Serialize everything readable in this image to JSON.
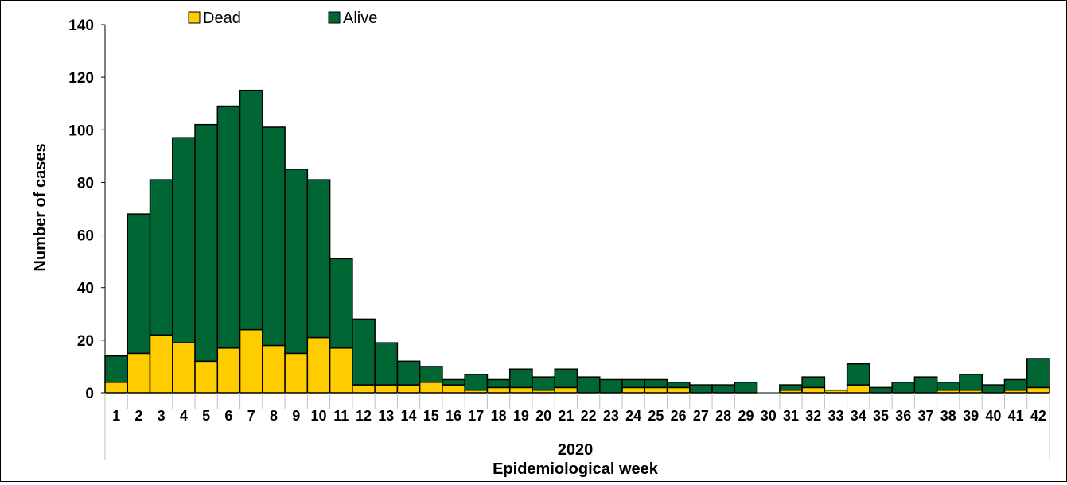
{
  "chart_data": {
    "type": "bar",
    "stacked": true,
    "title": "",
    "xlabel": "Epidemiological week",
    "year_label": "2020",
    "ylabel": "Number of cases",
    "ylim": [
      0,
      140
    ],
    "yticks": [
      0,
      20,
      40,
      60,
      80,
      100,
      120,
      140
    ],
    "grid": false,
    "legend_position": "top-left",
    "categories": [
      "1",
      "2",
      "3",
      "4",
      "5",
      "6",
      "7",
      "8",
      "9",
      "10",
      "11",
      "12",
      "13",
      "14",
      "15",
      "16",
      "17",
      "18",
      "19",
      "20",
      "21",
      "22",
      "23",
      "24",
      "25",
      "26",
      "27",
      "28",
      "29",
      "30",
      "31",
      "32",
      "33",
      "34",
      "35",
      "36",
      "37",
      "38",
      "39",
      "40",
      "41",
      "42"
    ],
    "series": [
      {
        "name": "Dead",
        "color": "#FFCC00",
        "values": [
          4,
          15,
          22,
          19,
          12,
          17,
          24,
          18,
          15,
          21,
          17,
          3,
          3,
          3,
          4,
          3,
          1,
          2,
          2,
          1,
          2,
          0,
          0,
          2,
          2,
          2,
          0,
          0,
          0,
          0,
          1,
          2,
          1,
          3,
          0,
          0,
          0,
          1,
          1,
          0,
          1,
          2
        ]
      },
      {
        "name": "Alive",
        "color": "#006633",
        "values": [
          10,
          53,
          59,
          78,
          90,
          92,
          91,
          83,
          70,
          60,
          34,
          25,
          16,
          9,
          6,
          2,
          6,
          3,
          7,
          5,
          7,
          6,
          5,
          3,
          3,
          2,
          3,
          3,
          4,
          0,
          2,
          4,
          0,
          8,
          2,
          4,
          6,
          3,
          6,
          3,
          4,
          11
        ]
      }
    ]
  }
}
